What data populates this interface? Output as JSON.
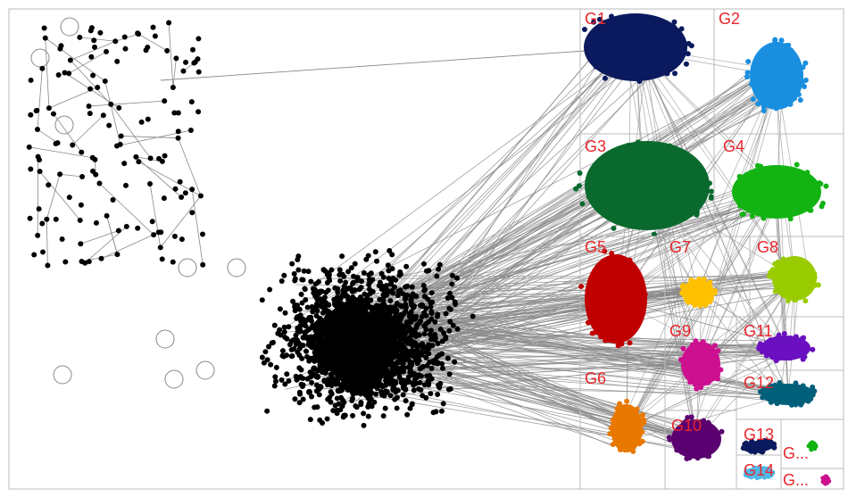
{
  "groups": [
    {
      "label": "G1"
    },
    {
      "label": "G2"
    },
    {
      "label": "G3"
    },
    {
      "label": "G4"
    },
    {
      "label": "G5"
    },
    {
      "label": "G7"
    },
    {
      "label": "G8"
    },
    {
      "label": "G9"
    },
    {
      "label": "G11"
    },
    {
      "label": "G6"
    },
    {
      "label": "G12"
    },
    {
      "label": "G10"
    },
    {
      "label": "G13"
    },
    {
      "label": "G14"
    },
    {
      "label": "G..."
    },
    {
      "label": "G..."
    }
  ]
}
